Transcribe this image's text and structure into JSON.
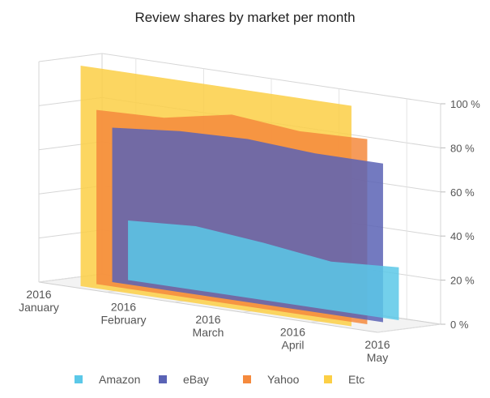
{
  "chart_data": {
    "type": "area",
    "title": "Review shares by market per month",
    "categories": [
      [
        "2016",
        "January"
      ],
      [
        "2016",
        "February"
      ],
      [
        "2016",
        "March"
      ],
      [
        "2016",
        "April"
      ],
      [
        "2016",
        "May"
      ]
    ],
    "yaxis": {
      "min": 0,
      "max": 100,
      "ticks": [
        0,
        20,
        40,
        60,
        80,
        100
      ],
      "tick_labels": [
        "0 %",
        "20 %",
        "40 %",
        "60 %",
        "80 %",
        "100 %"
      ]
    },
    "series": [
      {
        "name": "Amazon",
        "color": "#5bc8e8",
        "values": [
          27,
          29,
          26,
          22,
          24
        ]
      },
      {
        "name": "eBay",
        "color": "#5a63b5",
        "values": [
          70,
          73,
          74,
          72,
          72
        ]
      },
      {
        "name": "Yahoo",
        "color": "#f58a3d",
        "values": [
          79,
          80,
          86,
          83,
          84
        ]
      },
      {
        "name": "Etc",
        "color": "#fccf45",
        "values": [
          100,
          100,
          100,
          100,
          100
        ]
      }
    ],
    "grid": true,
    "legend_position": "bottom"
  }
}
